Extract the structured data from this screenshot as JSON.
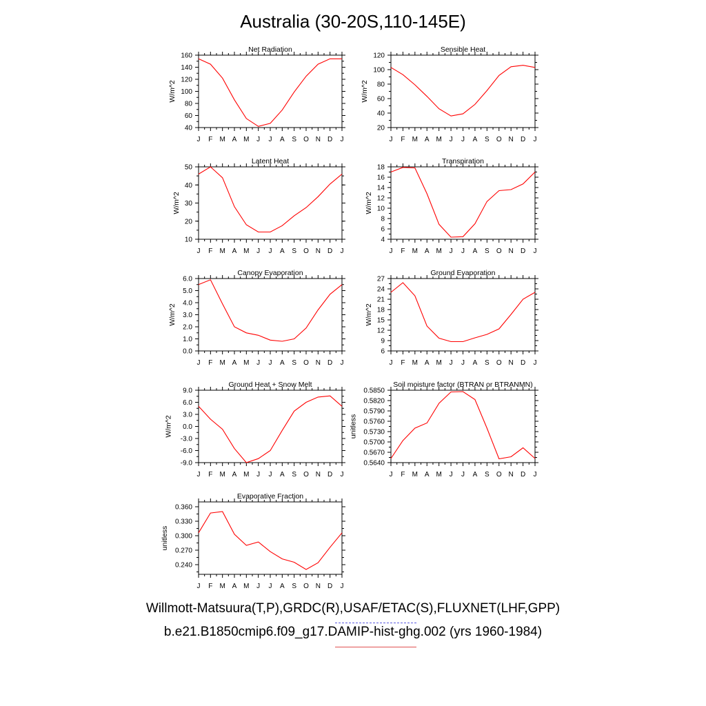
{
  "title": "Australia (30-20S,110-145E)",
  "credits": {
    "observations": "Willmott-Matsuura(T,P),GRDC(R),USAF/ETAC(S),FLUXNET(LHF,GPP)",
    "model": "b.e21.B1850cmip6.f09_g17.DAMIP-hist-ghg.002 (yrs 1960-1984)"
  },
  "colors": {
    "model_line": "#ff0000",
    "obs_legend": "#5a5adf",
    "model_legend": "#e05050"
  },
  "chart_data": [
    {
      "type": "line",
      "title": "Net Radiation",
      "ylabel": "W/m^2",
      "categories": [
        "J",
        "F",
        "M",
        "A",
        "M",
        "J",
        "J",
        "A",
        "S",
        "O",
        "N",
        "D",
        "J"
      ],
      "ylim": [
        40,
        160
      ],
      "ytick_labels": [
        "40",
        "60",
        "80",
        "100",
        "120",
        "140",
        "160"
      ],
      "series": [
        {
          "values": [
            154,
            145,
            122,
            86,
            55,
            42,
            47,
            69,
            99,
            125,
            145,
            154,
            154
          ]
        }
      ]
    },
    {
      "type": "line",
      "title": "Sensible Heat",
      "ylabel": "W/m^2",
      "categories": [
        "J",
        "F",
        "M",
        "A",
        "M",
        "J",
        "J",
        "A",
        "S",
        "O",
        "N",
        "D",
        "J"
      ],
      "ylim": [
        20,
        120
      ],
      "ytick_labels": [
        "20",
        "40",
        "60",
        "80",
        "100",
        "120"
      ],
      "series": [
        {
          "values": [
            103,
            93,
            79,
            63,
            46,
            36,
            39,
            52,
            71,
            92,
            104,
            106,
            103
          ]
        }
      ]
    },
    {
      "type": "line",
      "title": "Latent Heat",
      "ylabel": "W/m^2",
      "categories": [
        "J",
        "F",
        "M",
        "A",
        "M",
        "J",
        "J",
        "A",
        "S",
        "O",
        "N",
        "D",
        "J"
      ],
      "ylim": [
        10,
        50
      ],
      "ytick_labels": [
        "10",
        "20",
        "30",
        "40",
        "50"
      ],
      "series": [
        {
          "values": [
            46,
            50,
            44,
            28,
            18,
            14,
            14,
            17.5,
            23,
            27.5,
            33.5,
            40.5,
            46
          ]
        }
      ]
    },
    {
      "type": "line",
      "title": "Transpiration",
      "ylabel": "W/m^2",
      "categories": [
        "J",
        "F",
        "M",
        "A",
        "M",
        "J",
        "J",
        "A",
        "S",
        "O",
        "N",
        "D",
        "J"
      ],
      "ylim": [
        4,
        18
      ],
      "ytick_labels": [
        "4",
        "6",
        "8",
        "10",
        "12",
        "14",
        "16",
        "18"
      ],
      "series": [
        {
          "values": [
            17,
            17.9,
            17.8,
            12.8,
            6.9,
            4.4,
            4.5,
            7,
            11.3,
            13.4,
            13.6,
            14.7,
            17
          ]
        }
      ]
    },
    {
      "type": "line",
      "title": "Canopy Evaporation",
      "ylabel": "W/m^2",
      "categories": [
        "J",
        "F",
        "M",
        "A",
        "M",
        "J",
        "J",
        "A",
        "S",
        "O",
        "N",
        "D",
        "J"
      ],
      "ylim": [
        0,
        6
      ],
      "ytick_labels": [
        "0.0",
        "1.0",
        "2.0",
        "3.0",
        "4.0",
        "5.0",
        "6.0"
      ],
      "series": [
        {
          "values": [
            5.5,
            5.9,
            3.9,
            2.0,
            1.5,
            1.3,
            0.9,
            0.8,
            1.0,
            1.9,
            3.4,
            4.7,
            5.5
          ]
        }
      ]
    },
    {
      "type": "line",
      "title": "Ground Evaporation",
      "ylabel": "W/m^2",
      "categories": [
        "J",
        "F",
        "M",
        "A",
        "M",
        "J",
        "J",
        "A",
        "S",
        "O",
        "N",
        "D",
        "J"
      ],
      "ylim": [
        6,
        27
      ],
      "ytick_labels": [
        "6",
        "9",
        "12",
        "15",
        "18",
        "21",
        "24",
        "27"
      ],
      "series": [
        {
          "values": [
            23,
            25.8,
            22,
            13.2,
            9.7,
            8.7,
            8.7,
            9.8,
            10.8,
            12.4,
            16.6,
            21,
            23
          ]
        }
      ]
    },
    {
      "type": "line",
      "title": "Ground Heat + Snow Melt",
      "ylabel": "W/m^2",
      "categories": [
        "J",
        "F",
        "M",
        "A",
        "M",
        "J",
        "J",
        "A",
        "S",
        "O",
        "N",
        "D",
        "J"
      ],
      "ylim": [
        -9,
        9
      ],
      "ytick_labels": [
        "-9.0",
        "-6.0",
        "-3.0",
        "0.0",
        "3.0",
        "6.0",
        "9.0"
      ],
      "series": [
        {
          "values": [
            5,
            1.8,
            -0.7,
            -5.5,
            -9,
            -8,
            -6,
            -1,
            3.8,
            6,
            7.3,
            7.6,
            5
          ]
        }
      ]
    },
    {
      "type": "line",
      "title": "Soil moisture factor (BTRAN or BTRANMN)",
      "ylabel": "unitless",
      "categories": [
        "J",
        "F",
        "M",
        "A",
        "M",
        "J",
        "J",
        "A",
        "S",
        "O",
        "N",
        "D",
        "J"
      ],
      "ylim": [
        0.564,
        0.585
      ],
      "ytick_labels": [
        "0.5640",
        "0.5670",
        "0.5700",
        "0.5730",
        "0.5760",
        "0.5790",
        "0.5820",
        "0.5850"
      ],
      "series": [
        {
          "values": [
            0.5652,
            0.5704,
            0.574,
            0.5755,
            0.5812,
            0.5845,
            0.5846,
            0.5823,
            0.574,
            0.5651,
            0.5657,
            0.5683,
            0.5652
          ]
        }
      ]
    },
    {
      "type": "line",
      "title": "Evaporative Fraction",
      "ylabel": "unitless",
      "categories": [
        "J",
        "F",
        "M",
        "A",
        "M",
        "J",
        "J",
        "A",
        "S",
        "O",
        "N",
        "D",
        "J"
      ],
      "ylim": [
        0.22,
        0.37
      ],
      "ytick_labels": [
        "0.240",
        "0.270",
        "0.300",
        "0.330",
        "0.360"
      ],
      "series": [
        {
          "values": [
            0.306,
            0.347,
            0.35,
            0.303,
            0.28,
            0.287,
            0.267,
            0.252,
            0.245,
            0.23,
            0.244,
            0.276,
            0.306
          ]
        }
      ]
    }
  ]
}
